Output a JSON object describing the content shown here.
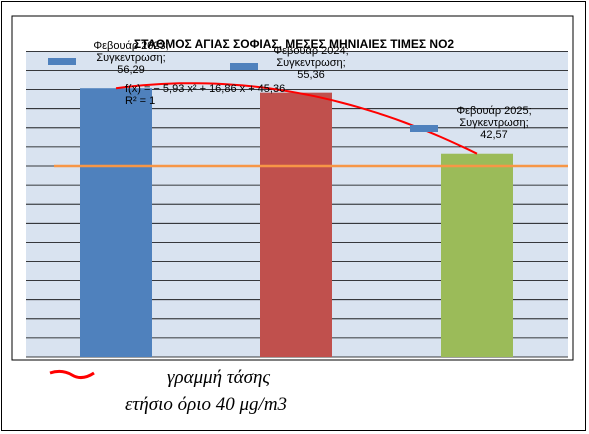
{
  "chart_data": {
    "type": "bar",
    "title": "ΣΤΑΘΜΟΣ ΑΓΙΑΣ ΣΟΦΙΑΣ, ΜΕΣΕΣ ΜΗΝΙΑΙΕΣ ΤΙΜΕΣ ΝΟ2",
    "xlabel": "",
    "ylabel": "",
    "ylim": [
      0,
      64
    ],
    "grid": true,
    "categories": [
      "Φεβουάρ 2023",
      "Φεβουάρ 2024",
      "Φεβουάρ 2025"
    ],
    "values": [
      56.29,
      55.36,
      42.57
    ],
    "bar_colors": [
      "#4f81bd",
      "#c0504d",
      "#9bbb59"
    ],
    "data_labels": [
      {
        "category": "Φεβουάρ 2023;",
        "series": "Συγκεντρωση;",
        "value": "56,29"
      },
      {
        "category": "Φεβουάρ 2024;",
        "series": "Συγκεντρωση;",
        "value": "55,36"
      },
      {
        "category": "Φεβουάρ 2025;",
        "series": "Συγκεντρωση;",
        "value": "42,57"
      }
    ],
    "trendline": {
      "type": "polynomial",
      "equation": "f(x) = − 5,93 x² + 16,86 x + 45,36",
      "r_squared": "R² = 1",
      "color": "#ff0000"
    },
    "limit_line": {
      "value": 40,
      "color": "#f79646"
    }
  },
  "legend": {
    "trend_label": "γραμμή τάσης",
    "limit_label": "ετήσιο όριο 40 μg/m3"
  }
}
